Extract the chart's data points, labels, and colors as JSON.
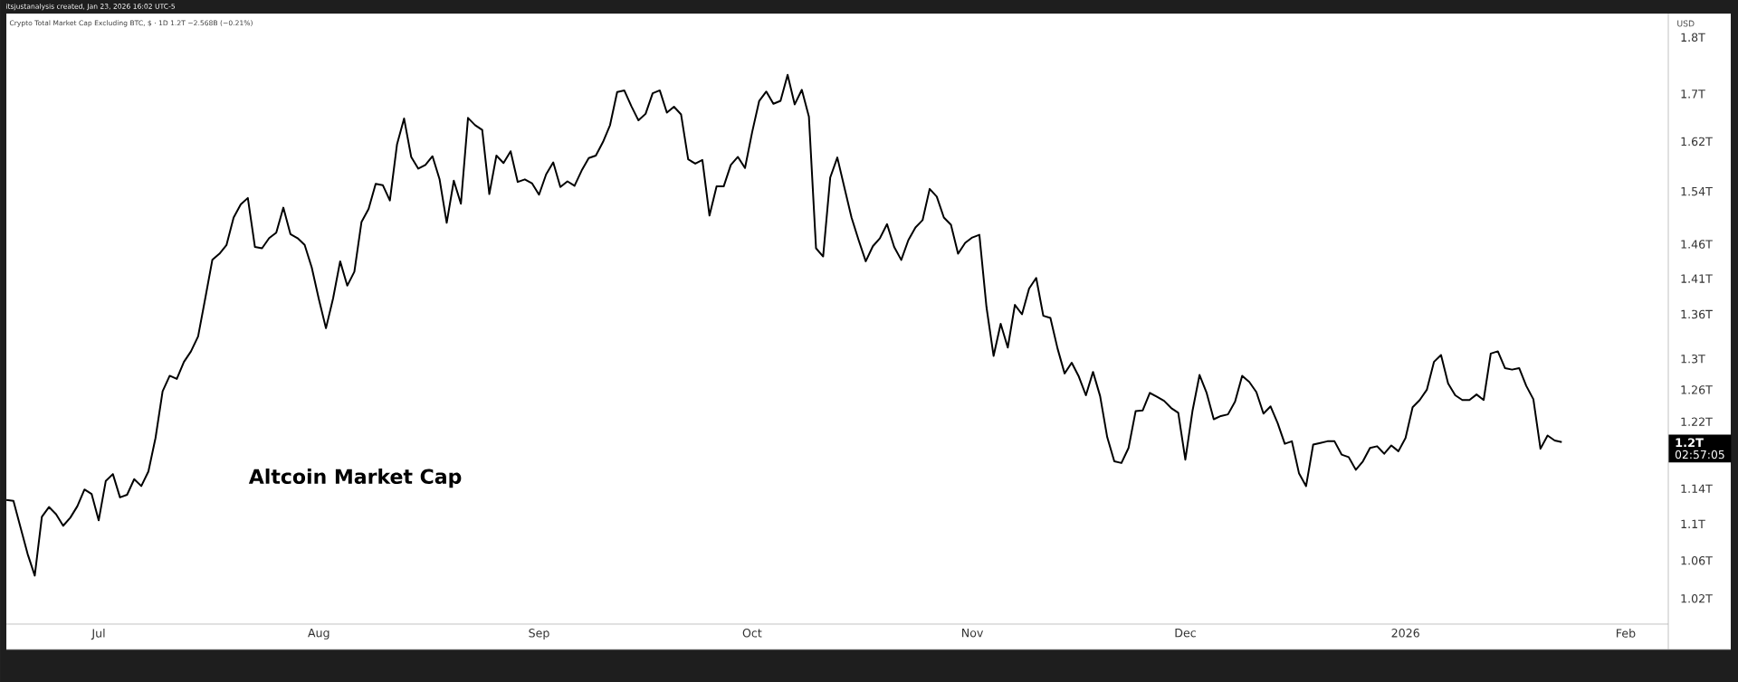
{
  "chart_data": {
    "type": "line",
    "title": "Altcoin Market Cap",
    "subtitle": "Crypto Total Market Cap Excluding BTC, $ · 1D  1.2T  −2.568B (−0.21%)",
    "ylabel": "USD",
    "annotations": [
      "itsjustanalysis created, Jan 23, 2026 16:02 UTC-5",
      "1.2T",
      "02:57:05"
    ],
    "color": "#000000",
    "log": true,
    "xlim": [
      "2025-06-18",
      "2026-02-07"
    ],
    "ylim": [
      0.994,
      1.844
    ],
    "xticks": [
      {
        "value": "2025-07-01",
        "label": "Jul"
      },
      {
        "value": "2025-08-01",
        "label": "Aug"
      },
      {
        "value": "2025-09-01",
        "label": "Sep"
      },
      {
        "value": "2025-10-01",
        "label": "Oct"
      },
      {
        "value": "2025-11-01",
        "label": "Nov"
      },
      {
        "value": "2025-12-01",
        "label": "Dec"
      },
      {
        "value": "2026-01-01",
        "label": "2026"
      },
      {
        "value": "2026-02-01",
        "label": "Feb"
      }
    ],
    "yticks": [
      {
        "value": 1.02,
        "label": "1.02T"
      },
      {
        "value": 1.06,
        "label": "1.06T"
      },
      {
        "value": 1.1,
        "label": "1.1T"
      },
      {
        "value": 1.14,
        "label": "1.14T"
      },
      {
        "value": 1.22,
        "label": "1.22T"
      },
      {
        "value": 1.26,
        "label": "1.26T"
      },
      {
        "value": 1.3,
        "label": "1.3T"
      },
      {
        "value": 1.36,
        "label": "1.36T"
      },
      {
        "value": 1.41,
        "label": "1.41T"
      },
      {
        "value": 1.46,
        "label": "1.46T"
      },
      {
        "value": 1.54,
        "label": "1.54T"
      },
      {
        "value": 1.62,
        "label": "1.62T"
      },
      {
        "value": 1.7,
        "label": "1.7T"
      },
      {
        "value": 1.8,
        "label": "1.8T"
      }
    ],
    "x": [
      "2025-06-18",
      "2025-06-19",
      "2025-06-20",
      "2025-06-21",
      "2025-06-22",
      "2025-06-23",
      "2025-06-24",
      "2025-06-25",
      "2025-06-26",
      "2025-06-27",
      "2025-06-28",
      "2025-06-29",
      "2025-06-30",
      "2025-07-01",
      "2025-07-02",
      "2025-07-03",
      "2025-07-04",
      "2025-07-05",
      "2025-07-06",
      "2025-07-07",
      "2025-07-08",
      "2025-07-09",
      "2025-07-10",
      "2025-07-11",
      "2025-07-12",
      "2025-07-13",
      "2025-07-14",
      "2025-07-15",
      "2025-07-16",
      "2025-07-17",
      "2025-07-18",
      "2025-07-19",
      "2025-07-20",
      "2025-07-21",
      "2025-07-22",
      "2025-07-23",
      "2025-07-24",
      "2025-07-25",
      "2025-07-26",
      "2025-07-27",
      "2025-07-28",
      "2025-07-29",
      "2025-07-30",
      "2025-07-31",
      "2025-08-01",
      "2025-08-02",
      "2025-08-03",
      "2025-08-04",
      "2025-08-05",
      "2025-08-06",
      "2025-08-07",
      "2025-08-08",
      "2025-08-09",
      "2025-08-10",
      "2025-08-11",
      "2025-08-12",
      "2025-08-13",
      "2025-08-14",
      "2025-08-15",
      "2025-08-16",
      "2025-08-17",
      "2025-08-18",
      "2025-08-19",
      "2025-08-20",
      "2025-08-21",
      "2025-08-22",
      "2025-08-23",
      "2025-08-24",
      "2025-08-25",
      "2025-08-26",
      "2025-08-27",
      "2025-08-28",
      "2025-08-29",
      "2025-08-30",
      "2025-08-31",
      "2025-09-01",
      "2025-09-02",
      "2025-09-03",
      "2025-09-04",
      "2025-09-05",
      "2025-09-06",
      "2025-09-07",
      "2025-09-08",
      "2025-09-09",
      "2025-09-10",
      "2025-09-11",
      "2025-09-12",
      "2025-09-13",
      "2025-09-14",
      "2025-09-15",
      "2025-09-16",
      "2025-09-17",
      "2025-09-18",
      "2025-09-19",
      "2025-09-20",
      "2025-09-21",
      "2025-09-22",
      "2025-09-23",
      "2025-09-24",
      "2025-09-25",
      "2025-09-26",
      "2025-09-27",
      "2025-09-28",
      "2025-09-29",
      "2025-09-30",
      "2025-10-01",
      "2025-10-02",
      "2025-10-03",
      "2025-10-04",
      "2025-10-05",
      "2025-10-06",
      "2025-10-07",
      "2025-10-08",
      "2025-10-09",
      "2025-10-10",
      "2025-10-11",
      "2025-10-12",
      "2025-10-13",
      "2025-10-14",
      "2025-10-15",
      "2025-10-16",
      "2025-10-17",
      "2025-10-18",
      "2025-10-19",
      "2025-10-20",
      "2025-10-21",
      "2025-10-22",
      "2025-10-23",
      "2025-10-24",
      "2025-10-25",
      "2025-10-26",
      "2025-10-27",
      "2025-10-28",
      "2025-10-29",
      "2025-10-30",
      "2025-10-31",
      "2025-11-01",
      "2025-11-02",
      "2025-11-03",
      "2025-11-04",
      "2025-11-05",
      "2025-11-06",
      "2025-11-07",
      "2025-11-08",
      "2025-11-09",
      "2025-11-10",
      "2025-11-11",
      "2025-11-12",
      "2025-11-13",
      "2025-11-14",
      "2025-11-15",
      "2025-11-16",
      "2025-11-17",
      "2025-11-18",
      "2025-11-19",
      "2025-11-20",
      "2025-11-21",
      "2025-11-22",
      "2025-11-23",
      "2025-11-24",
      "2025-11-25",
      "2025-11-26",
      "2025-11-27",
      "2025-11-28",
      "2025-11-29",
      "2025-11-30",
      "2025-12-01",
      "2025-12-02",
      "2025-12-03",
      "2025-12-04",
      "2025-12-05",
      "2025-12-06",
      "2025-12-07",
      "2025-12-08",
      "2025-12-09",
      "2025-12-10",
      "2025-12-11",
      "2025-12-12",
      "2025-12-13",
      "2025-12-14",
      "2025-12-15",
      "2025-12-16",
      "2025-12-17",
      "2025-12-18",
      "2025-12-19",
      "2025-12-20",
      "2025-12-21",
      "2025-12-22",
      "2025-12-23",
      "2025-12-24",
      "2025-12-25",
      "2025-12-26",
      "2025-12-27",
      "2025-12-28",
      "2025-12-29",
      "2025-12-30",
      "2025-12-31",
      "2026-01-01",
      "2026-01-02",
      "2026-01-03",
      "2026-01-04",
      "2026-01-05",
      "2026-01-06",
      "2026-01-07",
      "2026-01-08",
      "2026-01-09",
      "2026-01-10",
      "2026-01-11",
      "2026-01-12",
      "2026-01-13",
      "2026-01-14",
      "2026-01-15",
      "2026-01-16",
      "2026-01-17",
      "2026-01-18",
      "2026-01-19",
      "2026-01-20",
      "2026-01-21",
      "2026-01-22",
      "2026-01-23"
    ],
    "values": [
      1.127,
      1.126,
      1.096,
      1.067,
      1.044,
      1.108,
      1.119,
      1.111,
      1.098,
      1.107,
      1.12,
      1.139,
      1.134,
      1.104,
      1.149,
      1.157,
      1.13,
      1.133,
      1.151,
      1.143,
      1.16,
      1.2,
      1.258,
      1.278,
      1.274,
      1.296,
      1.31,
      1.33,
      1.382,
      1.437,
      1.446,
      1.459,
      1.5,
      1.52,
      1.53,
      1.456,
      1.454,
      1.469,
      1.477,
      1.515,
      1.475,
      1.469,
      1.459,
      1.426,
      1.381,
      1.341,
      1.382,
      1.435,
      1.4,
      1.42,
      1.493,
      1.513,
      1.552,
      1.55,
      1.526,
      1.615,
      1.658,
      1.595,
      1.576,
      1.582,
      1.596,
      1.559,
      1.492,
      1.557,
      1.521,
      1.659,
      1.647,
      1.639,
      1.536,
      1.597,
      1.585,
      1.604,
      1.555,
      1.559,
      1.553,
      1.535,
      1.567,
      1.586,
      1.547,
      1.556,
      1.549,
      1.573,
      1.593,
      1.597,
      1.619,
      1.647,
      1.703,
      1.706,
      1.679,
      1.655,
      1.666,
      1.701,
      1.706,
      1.668,
      1.678,
      1.665,
      1.591,
      1.584,
      1.59,
      1.503,
      1.548,
      1.548,
      1.582,
      1.595,
      1.577,
      1.635,
      1.688,
      1.704,
      1.683,
      1.688,
      1.733,
      1.682,
      1.707,
      1.661,
      1.454,
      1.442,
      1.562,
      1.594,
      1.546,
      1.5,
      1.466,
      1.435,
      1.457,
      1.469,
      1.49,
      1.456,
      1.437,
      1.466,
      1.485,
      1.496,
      1.544,
      1.532,
      1.5,
      1.489,
      1.446,
      1.462,
      1.47,
      1.474,
      1.37,
      1.304,
      1.347,
      1.315,
      1.373,
      1.36,
      1.396,
      1.411,
      1.358,
      1.355,
      1.314,
      1.281,
      1.295,
      1.277,
      1.253,
      1.283,
      1.252,
      1.201,
      1.172,
      1.17,
      1.188,
      1.233,
      1.234,
      1.256,
      1.251,
      1.246,
      1.237,
      1.231,
      1.174,
      1.233,
      1.279,
      1.256,
      1.223,
      1.227,
      1.229,
      1.245,
      1.278,
      1.27,
      1.257,
      1.23,
      1.239,
      1.218,
      1.193,
      1.196,
      1.158,
      1.143,
      1.192,
      1.194,
      1.196,
      1.196,
      1.18,
      1.177,
      1.162,
      1.172,
      1.188,
      1.19,
      1.181,
      1.191,
      1.184,
      1.2,
      1.238,
      1.247,
      1.26,
      1.296,
      1.305,
      1.268,
      1.253,
      1.247,
      1.247,
      1.254,
      1.247,
      1.307,
      1.31,
      1.288,
      1.286,
      1.288,
      1.265,
      1.248,
      1.187,
      1.203,
      1.197,
      1.195
    ]
  }
}
